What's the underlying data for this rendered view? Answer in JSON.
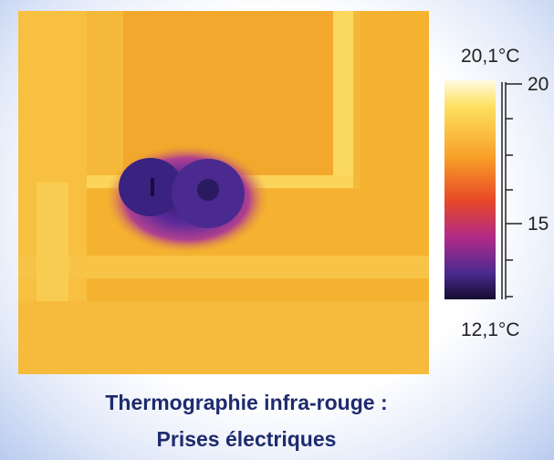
{
  "thermal_image": {
    "max_label": "20,1°C",
    "min_label": "12,1°C",
    "scale_ticks": [
      "20",
      "15"
    ]
  },
  "caption": {
    "line1": "Thermographie infra-rouge :",
    "line2": "Prises électriques"
  }
}
